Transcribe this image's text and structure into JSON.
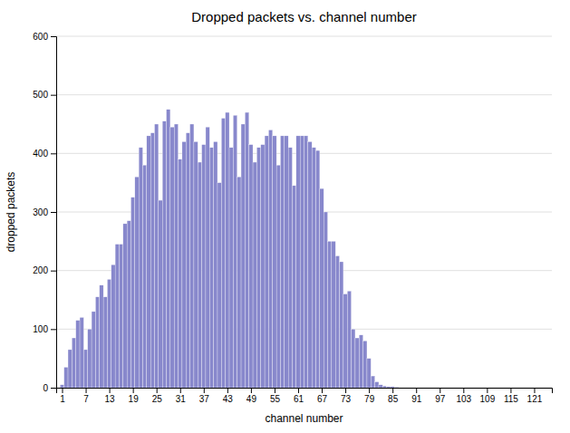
{
  "chart_data": {
    "type": "bar",
    "title": "Dropped packets vs. channel number",
    "xlabel": "channel number",
    "ylabel": "dropped packets",
    "x": [
      1,
      2,
      3,
      4,
      5,
      6,
      7,
      8,
      9,
      10,
      11,
      12,
      13,
      14,
      15,
      16,
      17,
      18,
      19,
      20,
      21,
      22,
      23,
      24,
      25,
      26,
      27,
      28,
      29,
      30,
      31,
      32,
      33,
      34,
      35,
      36,
      37,
      38,
      39,
      40,
      41,
      42,
      43,
      44,
      45,
      46,
      47,
      48,
      49,
      50,
      51,
      52,
      53,
      54,
      55,
      56,
      57,
      58,
      59,
      60,
      61,
      62,
      63,
      64,
      65,
      66,
      67,
      68,
      69,
      70,
      71,
      72,
      73,
      74,
      75,
      76,
      77,
      78,
      79,
      80,
      81,
      82,
      83,
      84,
      85,
      86,
      87,
      88,
      89,
      90,
      91,
      92,
      93,
      94,
      95,
      96,
      97,
      98,
      99,
      100,
      101,
      102,
      103,
      104,
      105,
      106,
      107,
      108,
      109,
      110,
      111,
      112,
      113,
      114,
      115,
      116,
      117,
      118,
      119,
      120,
      121,
      122,
      123,
      124,
      125
    ],
    "values": [
      5,
      35,
      65,
      85,
      115,
      120,
      65,
      100,
      130,
      155,
      175,
      155,
      185,
      210,
      245,
      245,
      280,
      285,
      325,
      360,
      410,
      380,
      430,
      435,
      450,
      320,
      455,
      475,
      445,
      450,
      390,
      420,
      435,
      450,
      420,
      385,
      415,
      445,
      410,
      420,
      350,
      460,
      470,
      410,
      465,
      360,
      450,
      470,
      415,
      385,
      410,
      415,
      430,
      440,
      430,
      380,
      430,
      430,
      410,
      345,
      430,
      430,
      430,
      420,
      410,
      405,
      340,
      300,
      250,
      250,
      225,
      215,
      160,
      165,
      100,
      85,
      90,
      80,
      50,
      20,
      10,
      5,
      3,
      2,
      2,
      1,
      0,
      0,
      0,
      0,
      0,
      0,
      0,
      0,
      0,
      0,
      0,
      0,
      0,
      0,
      0,
      0,
      0,
      0,
      0,
      0,
      0,
      0,
      0,
      0,
      0,
      0,
      0,
      0,
      0,
      0,
      0,
      0,
      0,
      0,
      0,
      0,
      0,
      0,
      0
    ],
    "color": "#8888cc",
    "xlim": [
      -0.5,
      125.5
    ],
    "xticks": [
      1,
      7,
      13,
      19,
      25,
      31,
      37,
      43,
      49,
      55,
      61,
      67,
      73,
      79,
      85,
      91,
      97,
      103,
      109,
      115,
      121
    ],
    "ylim": [
      0,
      600
    ],
    "yticks": [
      0,
      100,
      200,
      300,
      400,
      500,
      600
    ],
    "grid": true
  }
}
